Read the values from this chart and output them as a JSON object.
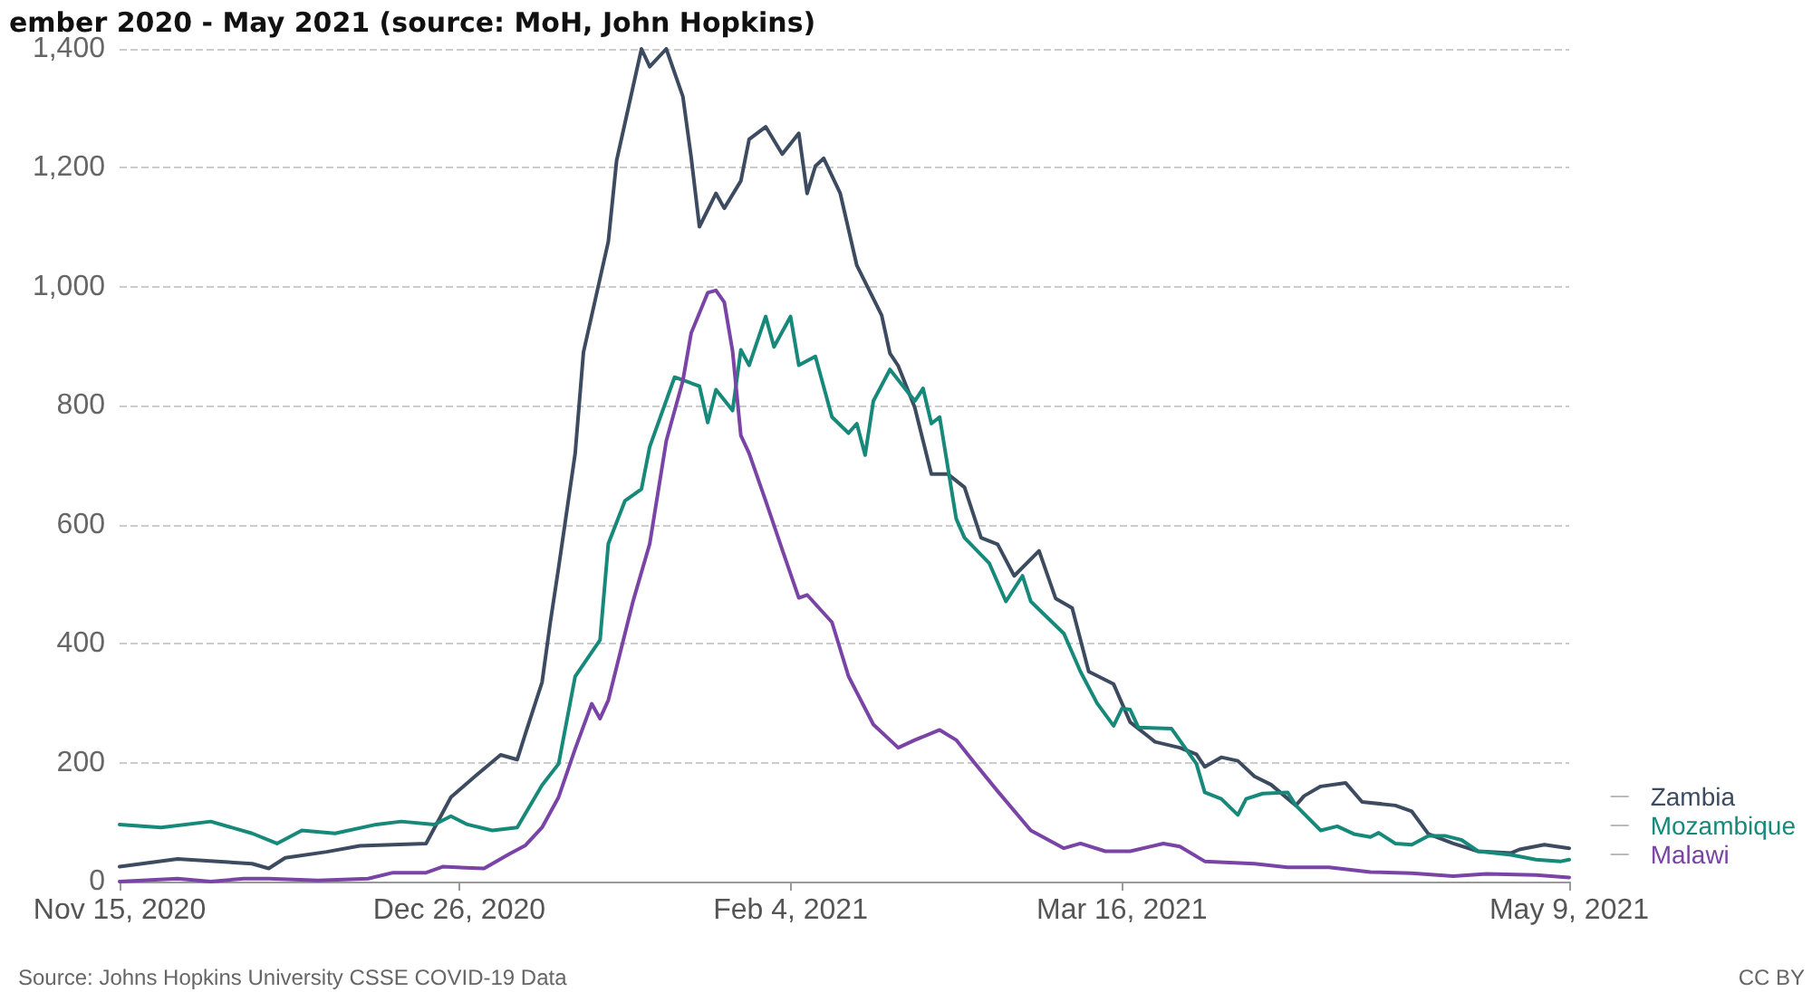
{
  "chart_data": {
    "type": "line",
    "title": "ember 2020 - May 2021 (source: MoH, John Hopkins)",
    "annotations": [
      "Source: Johns Hopkins University CSSE COVID-19 Data",
      "CC BY"
    ],
    "xlim": [
      "2020-11-15",
      "2021-05-09"
    ],
    "xticks": [
      {
        "value": "2020-11-15",
        "label": "Nov 15, 2020"
      },
      {
        "value": "2020-12-26",
        "label": "Dec 26, 2020"
      },
      {
        "value": "2021-02-04",
        "label": "Feb 4, 2021"
      },
      {
        "value": "2021-03-16",
        "label": "Mar 16, 2021"
      },
      {
        "value": "2021-05-09",
        "label": "May 9, 2021"
      }
    ],
    "ylim": [
      0,
      1400
    ],
    "yticks": [
      0,
      200,
      400,
      600,
      800,
      {
        "value": 1000,
        "label": "1,000"
      },
      {
        "value": 1200,
        "label": "1,200"
      },
      {
        "value": 1400,
        "label": "1,400"
      }
    ],
    "grid": "y",
    "legend": "right",
    "marker": "none",
    "line_style": "solid",
    "series": [
      {
        "name": "Zambia",
        "color": "#3d4b60",
        "x": [
          "2020-11-15",
          "2020-11-22",
          "2020-12-01",
          "2020-12-03",
          "2020-12-05",
          "2020-12-10",
          "2020-12-14",
          "2020-12-22",
          "2020-12-25",
          "2020-12-28",
          "2020-12-31",
          "2021-01-02",
          "2021-01-03",
          "2021-01-05",
          "2021-01-06",
          "2021-01-07",
          "2021-01-09",
          "2021-01-10",
          "2021-01-13",
          "2021-01-14",
          "2021-01-17",
          "2021-01-18",
          "2021-01-20",
          "2021-01-22",
          "2021-01-23",
          "2021-01-24",
          "2021-01-26",
          "2021-01-27",
          "2021-01-29",
          "2021-01-30",
          "2021-02-01",
          "2021-02-03",
          "2021-02-05",
          "2021-02-06",
          "2021-02-07",
          "2021-02-08",
          "2021-02-10",
          "2021-02-12",
          "2021-02-15",
          "2021-02-16",
          "2021-02-17",
          "2021-02-19",
          "2021-02-21",
          "2021-02-23",
          "2021-02-25",
          "2021-02-27",
          "2021-03-01",
          "2021-03-03",
          "2021-03-06",
          "2021-03-08",
          "2021-03-10",
          "2021-03-12",
          "2021-03-15",
          "2021-03-17",
          "2021-03-20",
          "2021-03-23",
          "2021-03-25",
          "2021-03-26",
          "2021-03-28",
          "2021-03-30",
          "2021-04-01",
          "2021-04-03",
          "2021-04-06",
          "2021-04-07",
          "2021-04-09",
          "2021-04-12",
          "2021-04-14",
          "2021-04-18",
          "2021-04-20",
          "2021-04-22",
          "2021-04-25",
          "2021-04-28",
          "2021-05-02",
          "2021-05-03",
          "2021-05-06",
          "2021-05-09"
        ],
        "values": [
          25,
          38,
          30,
          22,
          40,
          50,
          60,
          64,
          142,
          178,
          213,
          205,
          249,
          335,
          436,
          528,
          720,
          890,
          1076,
          1212,
          1400,
          1370,
          1400,
          1320,
          1218,
          1101,
          1157,
          1132,
          1178,
          1248,
          1269,
          1223,
          1258,
          1157,
          1203,
          1216,
          1157,
          1036,
          952,
          888,
          867,
          797,
          685,
          685,
          663,
          578,
          567,
          514,
          556,
          476,
          460,
          353,
          332,
          268,
          235,
          225,
          214,
          193,
          209,
          203,
          177,
          163,
          128,
          144,
          160,
          166,
          134,
          128,
          118,
          80,
          64,
          51,
          48,
          54,
          62,
          56
        ]
      },
      {
        "name": "Mozambique",
        "color": "#17897a",
        "x": [
          "2020-11-15",
          "2020-11-20",
          "2020-11-26",
          "2020-12-01",
          "2020-12-04",
          "2020-12-07",
          "2020-12-11",
          "2020-12-16",
          "2020-12-19",
          "2020-12-23",
          "2020-12-25",
          "2020-12-27",
          "2020-12-30",
          "2021-01-02",
          "2021-01-05",
          "2021-01-07",
          "2021-01-09",
          "2021-01-12",
          "2021-01-13",
          "2021-01-15",
          "2021-01-17",
          "2021-01-18",
          "2021-01-21",
          "2021-01-24",
          "2021-01-25",
          "2021-01-26",
          "2021-01-28",
          "2021-01-29",
          "2021-01-30",
          "2021-02-01",
          "2021-02-02",
          "2021-02-04",
          "2021-02-05",
          "2021-02-07",
          "2021-02-09",
          "2021-02-11",
          "2021-02-12",
          "2021-02-13",
          "2021-02-14",
          "2021-02-16",
          "2021-02-19",
          "2021-02-20",
          "2021-02-21",
          "2021-02-22",
          "2021-02-24",
          "2021-02-25",
          "2021-02-28",
          "2021-03-02",
          "2021-03-04",
          "2021-03-05",
          "2021-03-09",
          "2021-03-11",
          "2021-03-13",
          "2021-03-15",
          "2021-03-16",
          "2021-03-17",
          "2021-03-18",
          "2021-03-22",
          "2021-03-25",
          "2021-03-26",
          "2021-03-28",
          "2021-03-30",
          "2021-03-31",
          "2021-04-02",
          "2021-04-05",
          "2021-04-06",
          "2021-04-09",
          "2021-04-11",
          "2021-04-13",
          "2021-04-15",
          "2021-04-16",
          "2021-04-18",
          "2021-04-20",
          "2021-04-22",
          "2021-04-24",
          "2021-04-26",
          "2021-04-28",
          "2021-05-02",
          "2021-05-05",
          "2021-05-08",
          "2021-05-09"
        ],
        "values": [
          96,
          91,
          101,
          81,
          64,
          86,
          81,
          96,
          101,
          96,
          110,
          96,
          86,
          91,
          162,
          198,
          345,
          406,
          568,
          640,
          660,
          731,
          848,
          833,
          772,
          827,
          792,
          894,
          868,
          950,
          899,
          950,
          868,
          883,
          781,
          754,
          770,
          717,
          808,
          861,
          808,
          829,
          770,
          781,
          610,
          578,
          535,
          471,
          514,
          471,
          417,
          353,
          300,
          262,
          291,
          289,
          259,
          257,
          198,
          150,
          139,
          112,
          139,
          148,
          150,
          128,
          86,
          93,
          80,
          75,
          82,
          64,
          62,
          77,
          77,
          70,
          51,
          45,
          37,
          34,
          37
        ]
      },
      {
        "name": "Malawi",
        "color": "#7a44a6",
        "x": [
          "2020-11-15",
          "2020-11-22",
          "2020-11-26",
          "2020-11-30",
          "2020-12-03",
          "2020-12-09",
          "2020-12-15",
          "2020-12-18",
          "2020-12-22",
          "2020-12-24",
          "2020-12-29",
          "2021-01-01",
          "2021-01-03",
          "2021-01-05",
          "2021-01-07",
          "2021-01-09",
          "2021-01-11",
          "2021-01-12",
          "2021-01-13",
          "2021-01-16",
          "2021-01-18",
          "2021-01-20",
          "2021-01-22",
          "2021-01-23",
          "2021-01-25",
          "2021-01-26",
          "2021-01-27",
          "2021-01-28",
          "2021-01-29",
          "2021-01-30",
          "2021-02-01",
          "2021-02-03",
          "2021-02-05",
          "2021-02-06",
          "2021-02-09",
          "2021-02-11",
          "2021-02-14",
          "2021-02-17",
          "2021-02-19",
          "2021-02-22",
          "2021-02-24",
          "2021-02-26",
          "2021-03-01",
          "2021-03-05",
          "2021-03-09",
          "2021-03-11",
          "2021-03-14",
          "2021-03-17",
          "2021-03-21",
          "2021-03-23",
          "2021-03-26",
          "2021-04-01",
          "2021-04-05",
          "2021-04-10",
          "2021-04-15",
          "2021-04-20",
          "2021-04-25",
          "2021-04-29",
          "2021-05-05",
          "2021-05-09"
        ],
        "values": [
          0,
          5,
          0,
          5,
          5,
          2,
          5,
          15,
          15,
          25,
          22,
          46,
          61,
          91,
          142,
          223,
          299,
          274,
          305,
          472,
          568,
          741,
          842,
          922,
          990,
          994,
          974,
          892,
          750,
          720,
          640,
          558,
          477,
          482,
          436,
          345,
          264,
          225,
          238,
          255,
          238,
          203,
          152,
          86,
          56,
          64,
          51,
          51,
          64,
          59,
          34,
          30,
          24,
          24,
          16,
          14,
          9,
          13,
          11,
          7
        ]
      }
    ]
  }
}
